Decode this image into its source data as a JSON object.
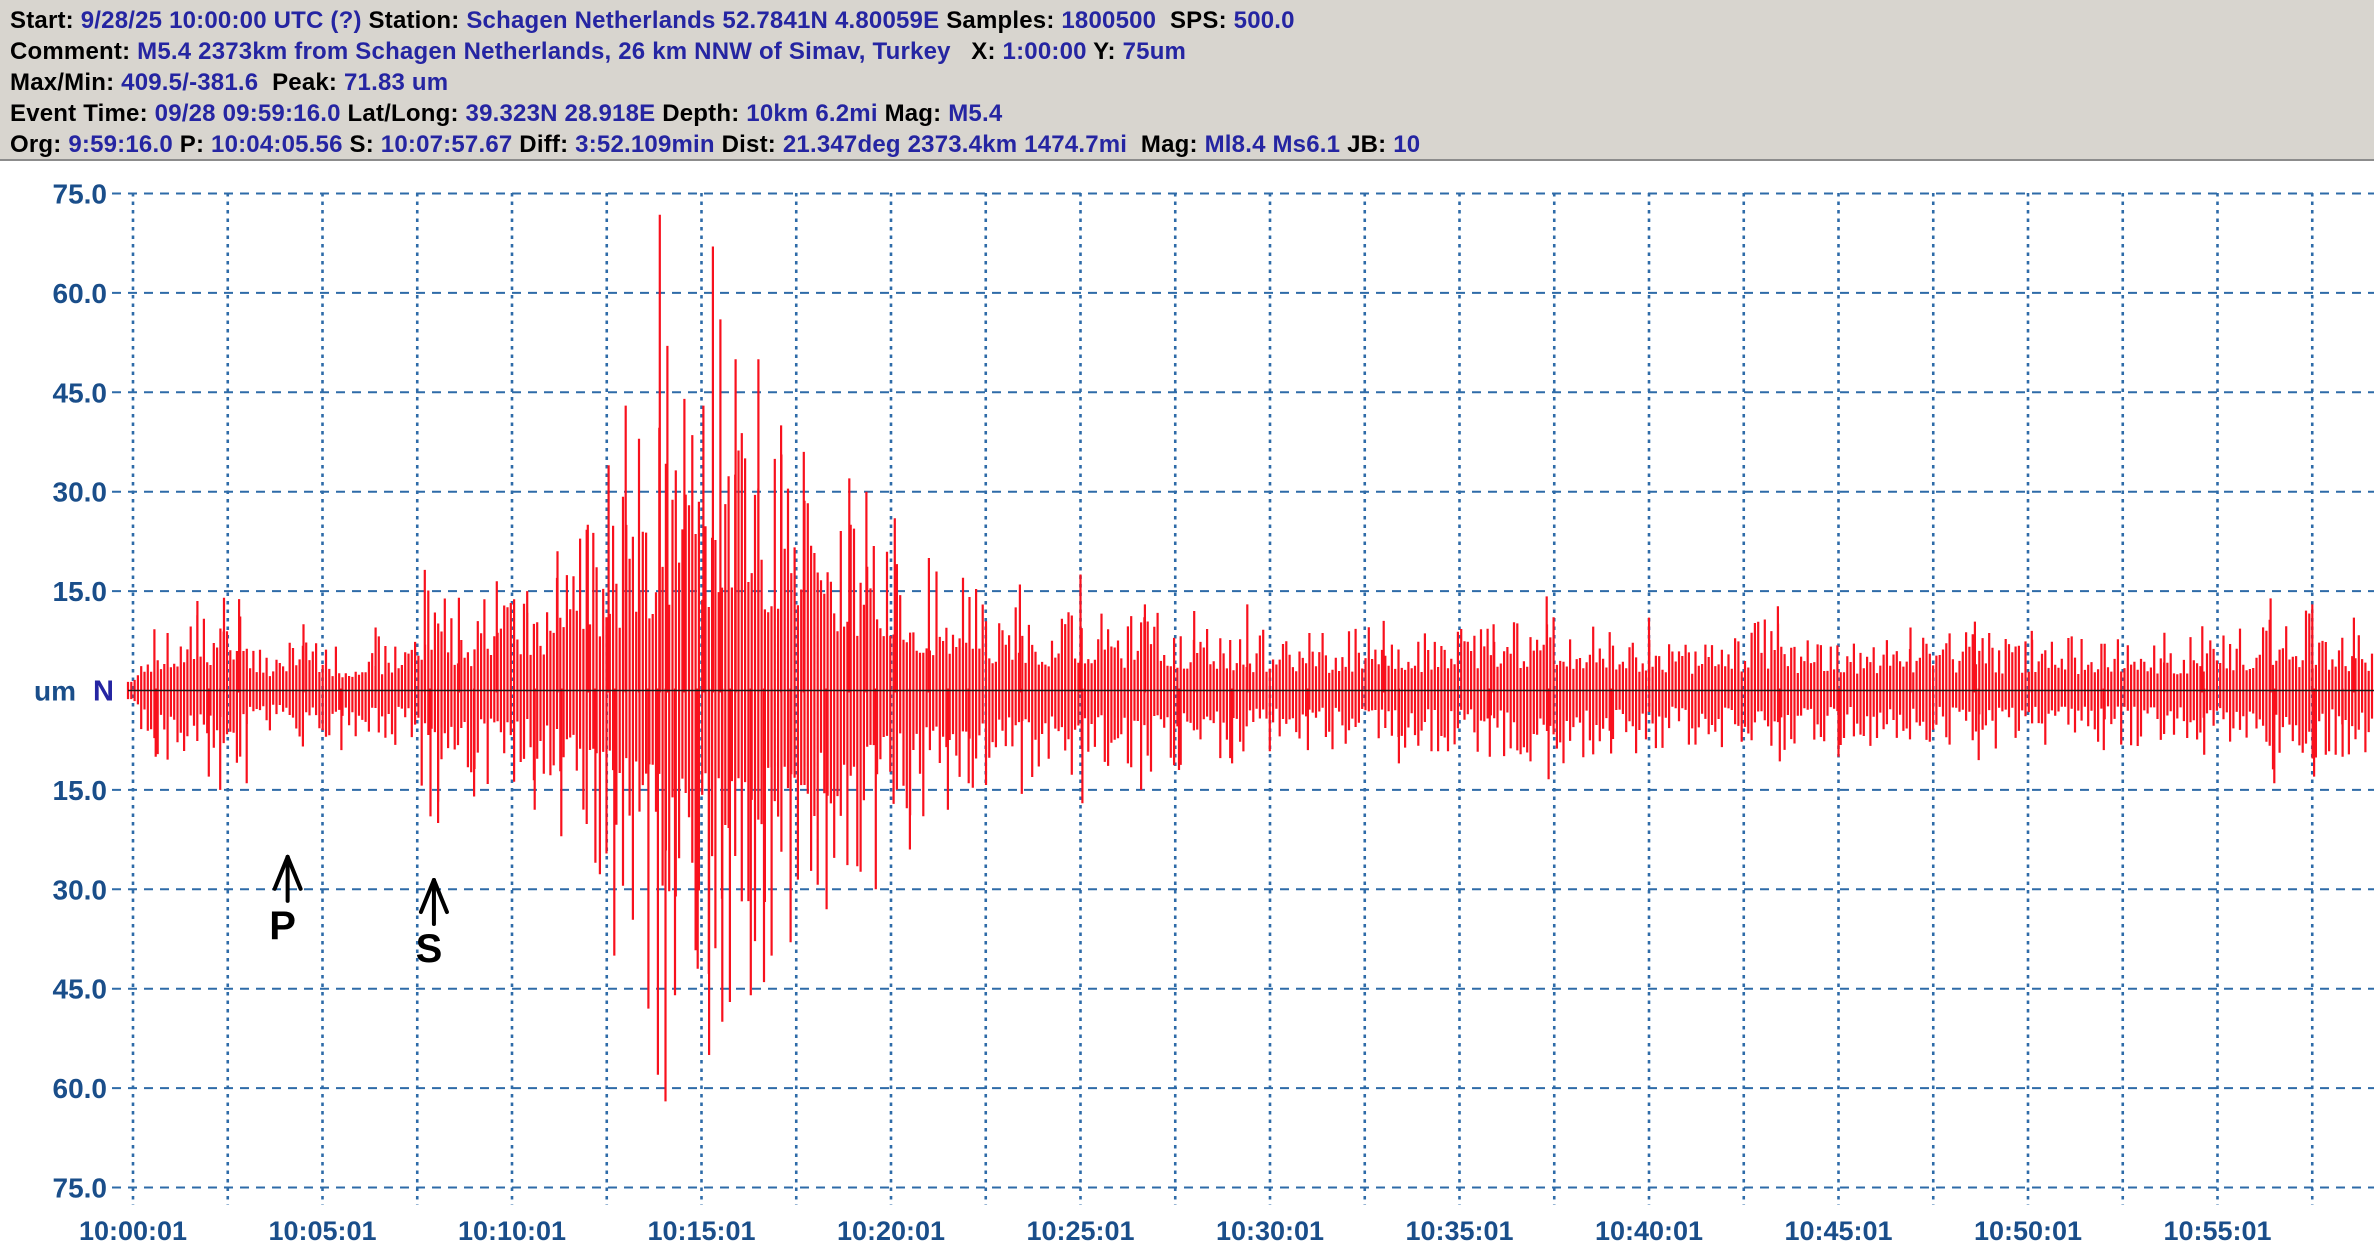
{
  "header": {
    "lines": [
      {
        "name": "start-line",
        "segments": [
          {
            "t": "Start: ",
            "c": "k"
          },
          {
            "t": "9/28/25 10:00:00 UTC (?)",
            "c": "v"
          },
          {
            "t": " Station: ",
            "c": "k"
          },
          {
            "t": "Schagen Netherlands 52.7841N 4.80059E",
            "c": "v"
          },
          {
            "t": " Samples: ",
            "c": "k"
          },
          {
            "t": "1800500",
            "c": "v"
          },
          {
            "t": "  SPS: ",
            "c": "k"
          },
          {
            "t": "500.0",
            "c": "v"
          }
        ]
      },
      {
        "name": "comment-line",
        "segments": [
          {
            "t": "Comment: ",
            "c": "k"
          },
          {
            "t": "M5.4 2373km from Schagen Netherlands, 26 km NNW of Simav, Turkey",
            "c": "v"
          },
          {
            "t": "   X: ",
            "c": "k"
          },
          {
            "t": "1:00:00",
            "c": "v"
          },
          {
            "t": " Y: ",
            "c": "k"
          },
          {
            "t": "75um",
            "c": "v"
          }
        ]
      },
      {
        "name": "maxmin-line",
        "segments": [
          {
            "t": "Max/Min: ",
            "c": "k"
          },
          {
            "t": "409.5/-381.6",
            "c": "v"
          },
          {
            "t": "  Peak: ",
            "c": "k"
          },
          {
            "t": "71.83 um",
            "c": "v"
          }
        ]
      },
      {
        "name": "event-line",
        "segments": [
          {
            "t": "Event Time: ",
            "c": "k"
          },
          {
            "t": "09/28 09:59:16.0",
            "c": "v"
          },
          {
            "t": " Lat/Long: ",
            "c": "k"
          },
          {
            "t": "39.323N 28.918E",
            "c": "v"
          },
          {
            "t": " Depth: ",
            "c": "k"
          },
          {
            "t": "10km 6.2mi",
            "c": "v"
          },
          {
            "t": " Mag: ",
            "c": "k"
          },
          {
            "t": "M5.4",
            "c": "v"
          }
        ]
      },
      {
        "name": "origin-line",
        "segments": [
          {
            "t": "Org: ",
            "c": "k"
          },
          {
            "t": "9:59:16.0",
            "c": "v"
          },
          {
            "t": " P: ",
            "c": "k"
          },
          {
            "t": "10:04:05.56",
            "c": "v"
          },
          {
            "t": " S: ",
            "c": "k"
          },
          {
            "t": "10:07:57.67",
            "c": "v"
          },
          {
            "t": " Diff: ",
            "c": "k"
          },
          {
            "t": "3:52.109min",
            "c": "v"
          },
          {
            "t": " Dist: ",
            "c": "k"
          },
          {
            "t": "21.347deg 2373.4km 1474.7mi",
            "c": "v"
          },
          {
            "t": "  Mag: ",
            "c": "k"
          },
          {
            "t": "Ml8.4 Ms6.1",
            "c": "v"
          },
          {
            "t": " JB: ",
            "c": "k"
          },
          {
            "t": "10",
            "c": "v"
          }
        ]
      }
    ]
  },
  "colors": {
    "trace_red": "#f8111d",
    "grid_blue": "#2e6ba8",
    "tick_blue": "#1a4e8a",
    "value_navy": "#2525a2",
    "header_gray": "#d8d5cf",
    "baseline_black": "#1a1a1a"
  },
  "chart_data": {
    "type": "line",
    "subtype": "seismogram",
    "title": "M5.4 2373km from Schagen Netherlands, 26 km NNW of Simav, Turkey",
    "station": "Schagen Netherlands",
    "component": "N",
    "y_unit": "um",
    "unit_label": "um",
    "component_label": "N",
    "ylim": [
      -75,
      75
    ],
    "y_grid_step_um": 15,
    "y_tick_labels": [
      "75.0",
      "60.0",
      "45.0",
      "30.0",
      "15.0",
      "15.0",
      "30.0",
      "45.0",
      "60.0",
      "75.0"
    ],
    "x_start": "10:00:01",
    "duration_min": 60,
    "x_tick_interval_min": 5,
    "x_grid_interval_min": 2.5,
    "x_tick_labels": [
      "10:00:01",
      "10:05:01",
      "10:10:01",
      "10:15:01",
      "10:20:01",
      "10:25:01",
      "10:30:01",
      "10:35:01",
      "10:40:01",
      "10:45:01",
      "10:50:01",
      "10:55:01"
    ],
    "peak_um": 71.83,
    "markers": [
      {
        "label": "P",
        "arrival": "10:04:05.56",
        "time_min": 4.08,
        "tip_um": -25.1
      },
      {
        "label": "S",
        "arrival": "10:07:57.67",
        "time_min": 7.94,
        "tip_um": -28.6
      }
    ],
    "envelope_um": [
      [
        0,
        2
      ],
      [
        0.3,
        8
      ],
      [
        0.8,
        10
      ],
      [
        1.3,
        11
      ],
      [
        1.8,
        12
      ],
      [
        2.3,
        13
      ],
      [
        2.8,
        13
      ],
      [
        3.1,
        8
      ],
      [
        3.6,
        7
      ],
      [
        4.1,
        7.5
      ],
      [
        4.6,
        9
      ],
      [
        5.1,
        7
      ],
      [
        5.7,
        6.5
      ],
      [
        6.3,
        8
      ],
      [
        6.9,
        8
      ],
      [
        7.4,
        9
      ],
      [
        7.7,
        16
      ],
      [
        8.0,
        17
      ],
      [
        8.4,
        13
      ],
      [
        8.9,
        12
      ],
      [
        9.4,
        14
      ],
      [
        9.8,
        14
      ],
      [
        10.3,
        13
      ],
      [
        10.8,
        16
      ],
      [
        11.2,
        19
      ],
      [
        11.6,
        21
      ],
      [
        12.0,
        24
      ],
      [
        12.4,
        28
      ],
      [
        12.8,
        31
      ],
      [
        13.2,
        34
      ],
      [
        13.6,
        36
      ],
      [
        14.0,
        40
      ],
      [
        14.4,
        36
      ],
      [
        14.8,
        38
      ],
      [
        15.2,
        42
      ],
      [
        15.6,
        40
      ],
      [
        16.0,
        40
      ],
      [
        16.4,
        42
      ],
      [
        16.8,
        38
      ],
      [
        17.2,
        34
      ],
      [
        17.6,
        31
      ],
      [
        18.0,
        29
      ],
      [
        18.5,
        27
      ],
      [
        19.0,
        28
      ],
      [
        19.5,
        25
      ],
      [
        20.0,
        22
      ],
      [
        20.5,
        20
      ],
      [
        21.0,
        18
      ],
      [
        21.5,
        17
      ],
      [
        22.0,
        16
      ],
      [
        22.5,
        14
      ],
      [
        23.0,
        13
      ],
      [
        23.5,
        14
      ],
      [
        24.0,
        12
      ],
      [
        24.5,
        12
      ],
      [
        25.0,
        14
      ],
      [
        25.5,
        12
      ],
      [
        26.0,
        11
      ],
      [
        26.5,
        12
      ],
      [
        27.0,
        12
      ],
      [
        27.5,
        11
      ],
      [
        28.0,
        11
      ],
      [
        28.5,
        10
      ],
      [
        29.0,
        10
      ],
      [
        29.5,
        9
      ],
      [
        30.0,
        9
      ],
      [
        30.7,
        8.5
      ],
      [
        31.4,
        8.5
      ],
      [
        32.1,
        9
      ],
      [
        32.8,
        9.5
      ],
      [
        33.5,
        10
      ],
      [
        34.2,
        9
      ],
      [
        34.9,
        9
      ],
      [
        35.6,
        9.5
      ],
      [
        36.2,
        10
      ],
      [
        36.8,
        11
      ],
      [
        37.2,
        13
      ],
      [
        37.6,
        11
      ],
      [
        38.2,
        10
      ],
      [
        38.8,
        9
      ],
      [
        39.4,
        9.5
      ],
      [
        40.0,
        9
      ],
      [
        40.7,
        8
      ],
      [
        41.4,
        8
      ],
      [
        42.1,
        8.5
      ],
      [
        42.8,
        10
      ],
      [
        43.3,
        11
      ],
      [
        43.8,
        9
      ],
      [
        44.4,
        8
      ],
      [
        45.0,
        8.5
      ],
      [
        45.6,
        8
      ],
      [
        46.2,
        8.5
      ],
      [
        46.8,
        9
      ],
      [
        47.4,
        8
      ],
      [
        48.0,
        8.5
      ],
      [
        48.6,
        9.5
      ],
      [
        49.2,
        8.5
      ],
      [
        49.8,
        8.5
      ],
      [
        50.5,
        8
      ],
      [
        51.2,
        8
      ],
      [
        51.9,
        8
      ],
      [
        52.6,
        8
      ],
      [
        53.3,
        8.5
      ],
      [
        54.0,
        8
      ],
      [
        54.7,
        8.5
      ],
      [
        55.3,
        9
      ],
      [
        55.8,
        10
      ],
      [
        56.3,
        12
      ],
      [
        56.8,
        11
      ],
      [
        57.3,
        12
      ],
      [
        57.8,
        9.5
      ],
      [
        58.4,
        9.5
      ],
      [
        59.1,
        9
      ]
    ],
    "spikes_up_um": [
      [
        1.7,
        13.5
      ],
      [
        2.4,
        14
      ],
      [
        2.8,
        13.8
      ],
      [
        4.5,
        10
      ],
      [
        6.4,
        9.5
      ],
      [
        7.7,
        18.2
      ],
      [
        8.6,
        14
      ],
      [
        9.6,
        16.5
      ],
      [
        10.4,
        15
      ],
      [
        11.2,
        21
      ],
      [
        12.0,
        25
      ],
      [
        12.55,
        34
      ],
      [
        13.0,
        43
      ],
      [
        13.35,
        38
      ],
      [
        13.9,
        71.8
      ],
      [
        14.1,
        52
      ],
      [
        14.55,
        44
      ],
      [
        15.05,
        43
      ],
      [
        15.3,
        67
      ],
      [
        15.5,
        56
      ],
      [
        15.9,
        50
      ],
      [
        16.5,
        50
      ],
      [
        17.1,
        40
      ],
      [
        17.7,
        36
      ],
      [
        18.9,
        32
      ],
      [
        19.35,
        30
      ],
      [
        20.1,
        26
      ],
      [
        21.0,
        20
      ],
      [
        21.9,
        17
      ],
      [
        23.4,
        16
      ],
      [
        25.0,
        17.5
      ],
      [
        26.7,
        13
      ],
      [
        28.0,
        12
      ],
      [
        29.4,
        13
      ],
      [
        33.0,
        10.5
      ],
      [
        35.9,
        10
      ],
      [
        37.3,
        14.2
      ],
      [
        40.0,
        11
      ],
      [
        43.4,
        12.7
      ],
      [
        46.9,
        9.5
      ],
      [
        48.6,
        10.4
      ],
      [
        50.1,
        9
      ],
      [
        53.6,
        8.7
      ],
      [
        54.6,
        9.7
      ],
      [
        56.4,
        13.9
      ],
      [
        57.5,
        13
      ],
      [
        58.6,
        11
      ]
    ],
    "spikes_down_um": [
      [
        0.6,
        10
      ],
      [
        2.0,
        13
      ],
      [
        2.3,
        15
      ],
      [
        3.0,
        14
      ],
      [
        5.5,
        9
      ],
      [
        7.85,
        19
      ],
      [
        8.05,
        20
      ],
      [
        9.0,
        16
      ],
      [
        10.6,
        18
      ],
      [
        11.3,
        22
      ],
      [
        12.2,
        26
      ],
      [
        12.7,
        40
      ],
      [
        13.6,
        48
      ],
      [
        13.85,
        58
      ],
      [
        14.05,
        62
      ],
      [
        14.3,
        46
      ],
      [
        14.9,
        42
      ],
      [
        15.2,
        55
      ],
      [
        15.55,
        50
      ],
      [
        15.75,
        47
      ],
      [
        16.3,
        46
      ],
      [
        16.65,
        44
      ],
      [
        16.85,
        40
      ],
      [
        17.35,
        38
      ],
      [
        18.3,
        33
      ],
      [
        19.6,
        30
      ],
      [
        20.5,
        24
      ],
      [
        21.5,
        18
      ],
      [
        22.05,
        14
      ],
      [
        23.45,
        15.6
      ],
      [
        25.05,
        17
      ],
      [
        26.6,
        15
      ],
      [
        27.6,
        12
      ],
      [
        29.0,
        11
      ],
      [
        31.0,
        9
      ],
      [
        33.4,
        11
      ],
      [
        35.8,
        10
      ],
      [
        37.35,
        13.4
      ],
      [
        39.0,
        9.5
      ],
      [
        43.45,
        10.7
      ],
      [
        45.0,
        10
      ],
      [
        48.7,
        10.5
      ],
      [
        52.0,
        9
      ],
      [
        54.65,
        9.7
      ],
      [
        56.5,
        14
      ],
      [
        57.55,
        13
      ],
      [
        58.3,
        10
      ]
    ]
  }
}
